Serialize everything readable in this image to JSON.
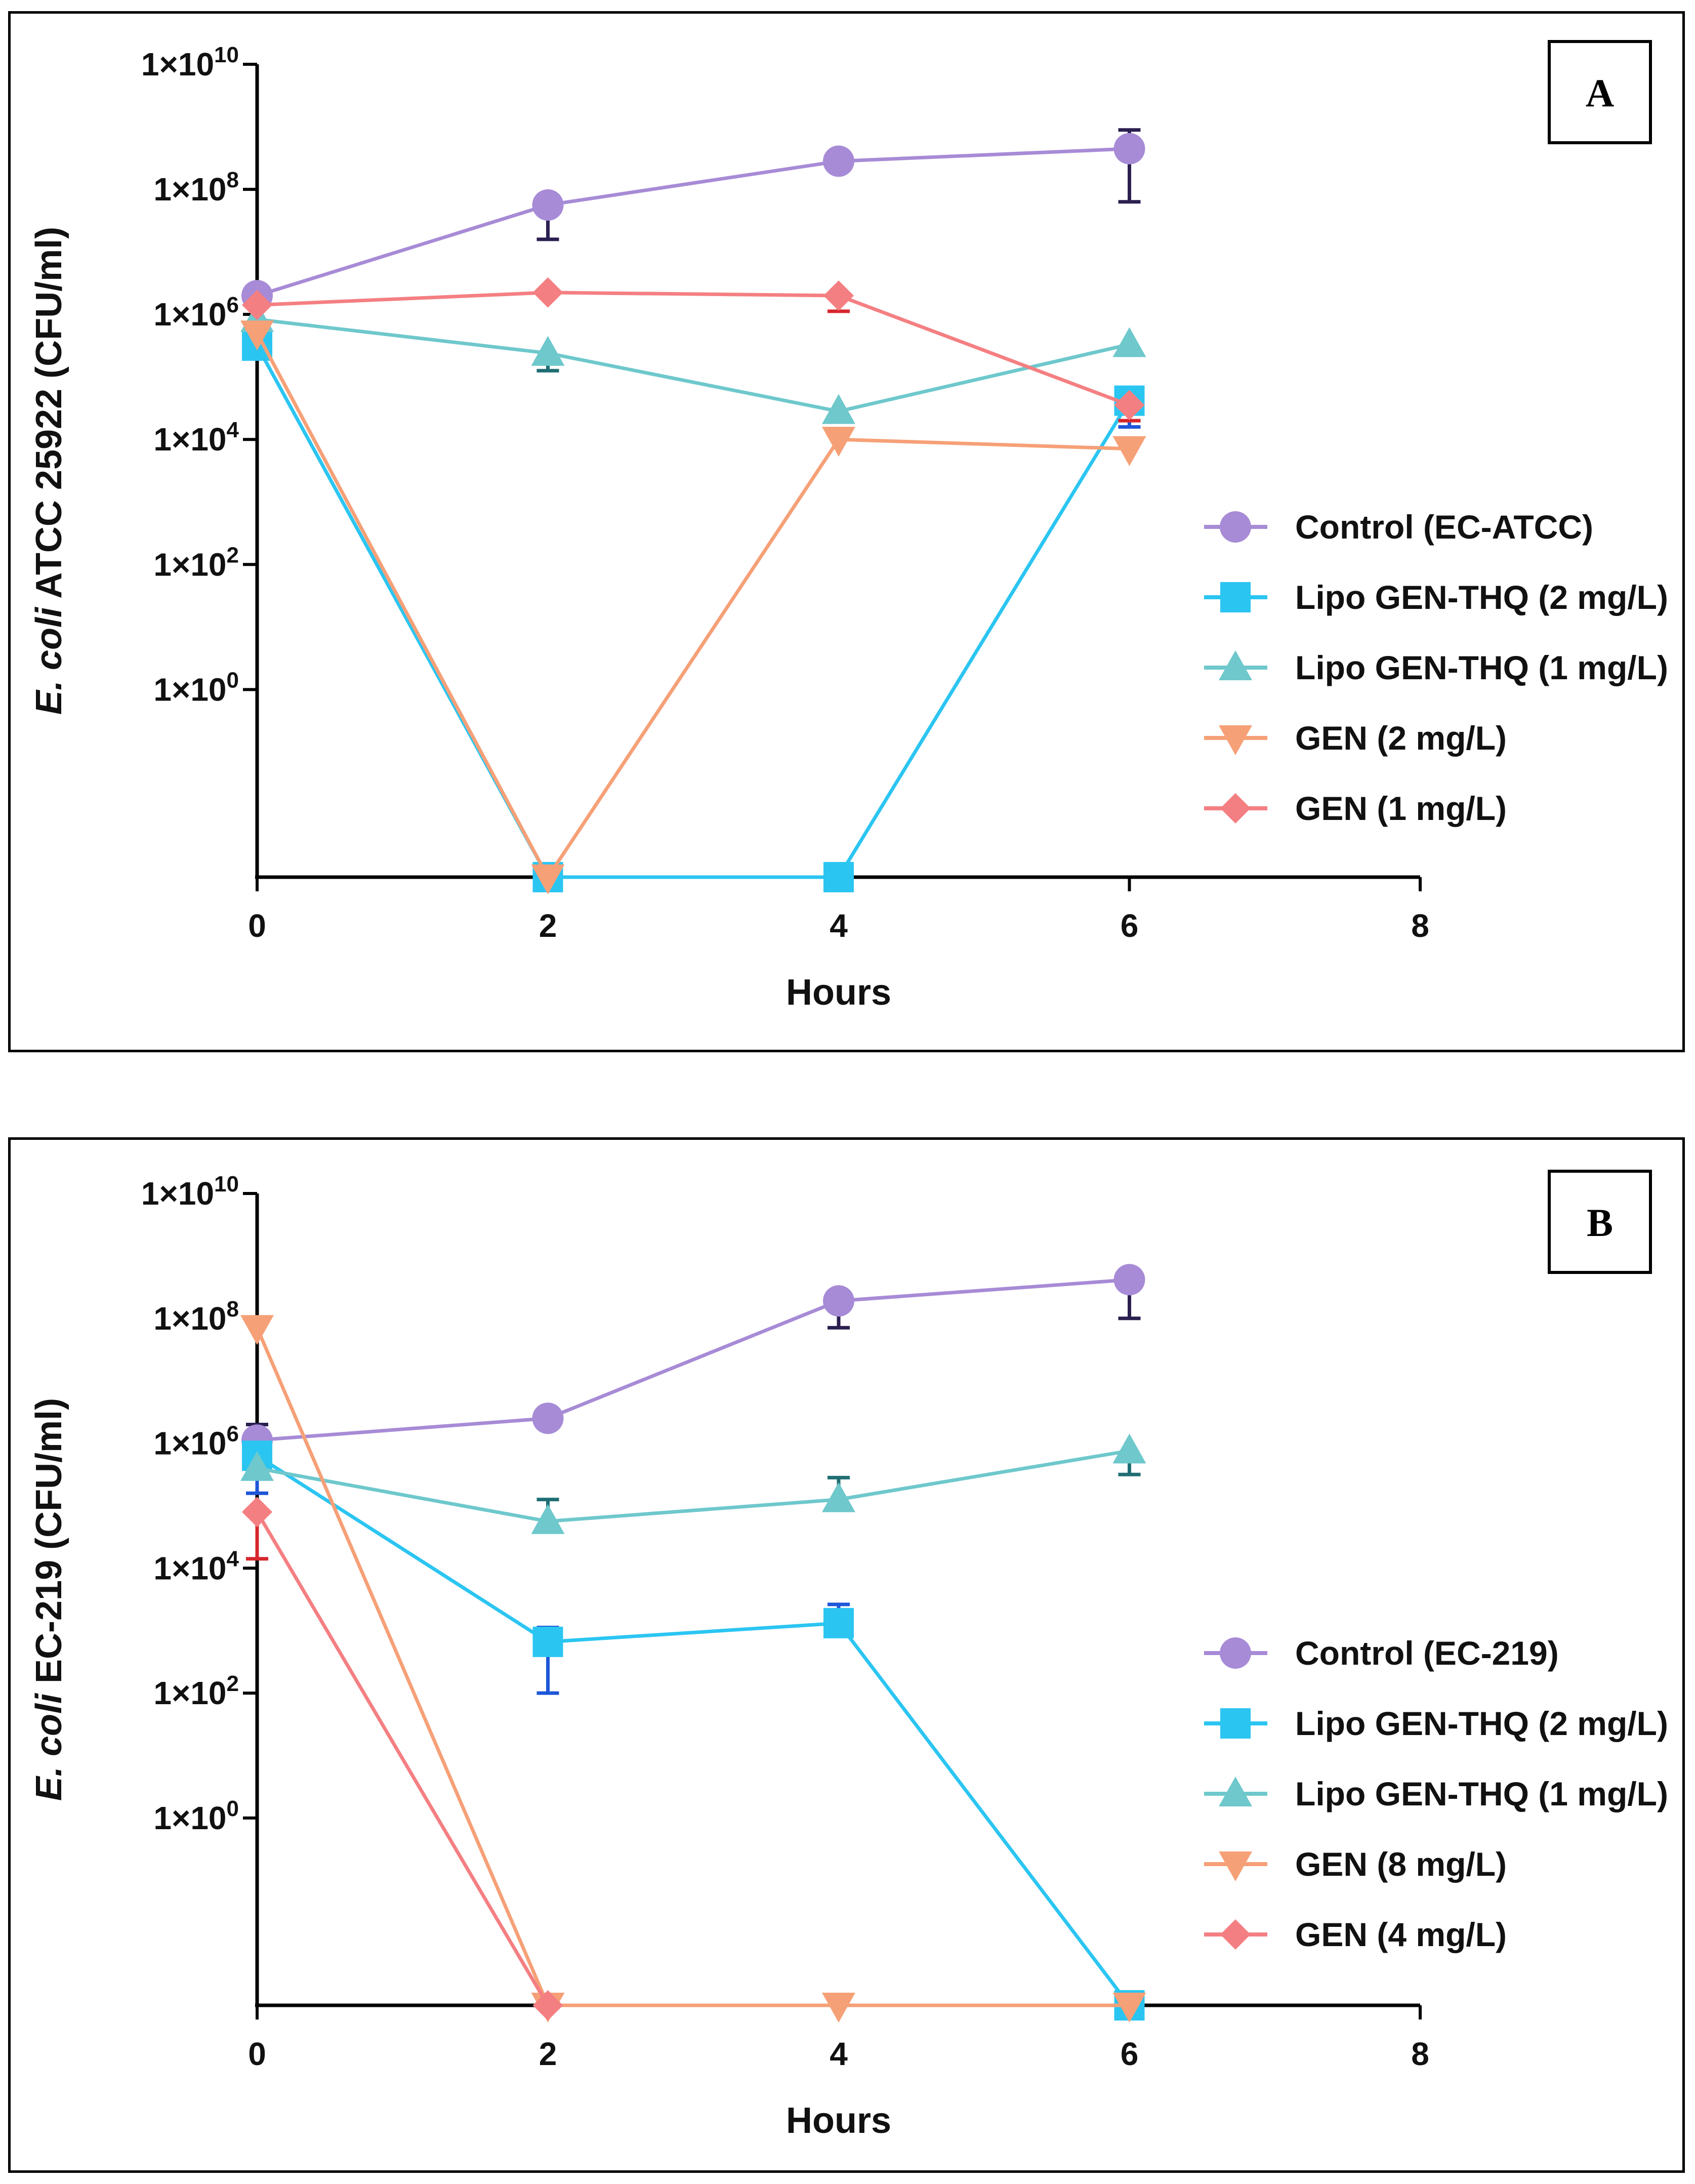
{
  "chart_data": [
    {
      "panel": "A",
      "type": "line",
      "panel_label": "A",
      "ylabel_italic": "E. coli",
      "ylabel_rest": " ATCC 25922 (CFU/ml)",
      "xlabel": "Hours",
      "y_scale": "log10",
      "x_ticks": [
        "0",
        "2",
        "4",
        "6",
        "8"
      ],
      "y_ticks": [
        {
          "mant": "1×10",
          "exp": "10",
          "log": 10
        },
        {
          "mant": "1×10",
          "exp": "8",
          "log": 8
        },
        {
          "mant": "1×10",
          "exp": "6",
          "log": 6
        },
        {
          "mant": "1×10",
          "exp": "4",
          "log": 4
        },
        {
          "mant": "1×10",
          "exp": "2",
          "log": 2
        },
        {
          "mant": "1×10",
          "exp": "0",
          "log": 0
        }
      ],
      "xlim": [
        0,
        8
      ],
      "ylim_log": [
        -3,
        10
      ],
      "series": [
        {
          "name": "Control (EC-ATCC)",
          "color": "#a78bd6",
          "err_color": "#2b1f50",
          "marker": "circle",
          "x": [
            0,
            2,
            4,
            6
          ],
          "y_log": [
            6.3,
            7.75,
            8.45,
            8.65
          ],
          "err_lo": [
            null,
            7.2,
            null,
            7.8
          ],
          "err_hi": [
            null,
            null,
            null,
            8.95
          ]
        },
        {
          "name": "Lipo GEN-THQ (2 mg/L)",
          "color": "#2bc5f2",
          "err_color": "#1e56d8",
          "marker": "square",
          "x": [
            0,
            2,
            4,
            6
          ],
          "y_log": [
            5.5,
            -3,
            -3,
            4.62
          ],
          "err_lo": [
            null,
            null,
            null,
            4.2
          ],
          "err_hi": [
            null,
            null,
            null,
            null
          ]
        },
        {
          "name": "Lipo GEN-THQ (1 mg/L)",
          "color": "#6ec8cc",
          "err_color": "#1f6e73",
          "marker": "triangle-up",
          "x": [
            0,
            2,
            4,
            6
          ],
          "y_log": [
            5.92,
            5.38,
            4.45,
            5.52
          ],
          "err_lo": [
            null,
            5.1,
            null,
            null
          ],
          "err_hi": [
            null,
            null,
            null,
            null
          ]
        },
        {
          "name": "GEN (2 mg/L)",
          "color": "#f6a077",
          "err_color": "#e45d2a",
          "marker": "triangle-down",
          "x": [
            0,
            2,
            4,
            6
          ],
          "y_log": [
            5.7,
            -3,
            4.0,
            3.85
          ],
          "err_lo": [
            null,
            null,
            null,
            null
          ],
          "err_hi": [
            null,
            null,
            null,
            null
          ]
        },
        {
          "name": "GEN (1 mg/L)",
          "color": "#f47f82",
          "err_color": "#d7262c",
          "marker": "diamond",
          "x": [
            0,
            2,
            4,
            6
          ],
          "y_log": [
            6.15,
            6.35,
            6.3,
            4.55
          ],
          "err_lo": [
            null,
            null,
            6.05,
            4.3
          ],
          "err_hi": [
            null,
            null,
            null,
            null
          ]
        }
      ]
    },
    {
      "panel": "B",
      "type": "line",
      "panel_label": "B",
      "ylabel_italic": "E. coli",
      "ylabel_rest": " EC-219 (CFU/ml)",
      "xlabel": "Hours",
      "y_scale": "log10",
      "x_ticks": [
        "0",
        "2",
        "4",
        "6",
        "8"
      ],
      "y_ticks": [
        {
          "mant": "1×10",
          "exp": "10",
          "log": 10
        },
        {
          "mant": "1×10",
          "exp": "8",
          "log": 8
        },
        {
          "mant": "1×10",
          "exp": "6",
          "log": 6
        },
        {
          "mant": "1×10",
          "exp": "4",
          "log": 4
        },
        {
          "mant": "1×10",
          "exp": "2",
          "log": 2
        },
        {
          "mant": "1×10",
          "exp": "0",
          "log": 0
        }
      ],
      "xlim": [
        0,
        8
      ],
      "ylim_log": [
        -3,
        10
      ],
      "series": [
        {
          "name": "Control (EC-219)",
          "color": "#a78bd6",
          "err_color": "#2b1f50",
          "marker": "circle",
          "x": [
            0,
            2,
            4,
            6
          ],
          "y_log": [
            6.05,
            6.4,
            8.28,
            8.62
          ],
          "err_lo": [
            5.5,
            null,
            7.85,
            8.0
          ],
          "err_hi": [
            6.3,
            null,
            null,
            null
          ]
        },
        {
          "name": "Lipo GEN-THQ (2 mg/L)",
          "color": "#2bc5f2",
          "err_color": "#1e56d8",
          "marker": "square",
          "x": [
            0,
            2,
            4,
            6
          ],
          "y_log": [
            5.8,
            2.82,
            3.12,
            -3
          ],
          "err_lo": [
            5.2,
            2.0,
            null,
            null
          ],
          "err_hi": [
            null,
            3.05,
            3.42,
            null
          ]
        },
        {
          "name": "Lipo GEN-THQ (1 mg/L)",
          "color": "#6ec8cc",
          "err_color": "#1f6e73",
          "marker": "triangle-up",
          "x": [
            0,
            2,
            4,
            6
          ],
          "y_log": [
            5.6,
            4.75,
            5.1,
            5.88
          ],
          "err_lo": [
            null,
            null,
            null,
            5.5
          ],
          "err_hi": [
            null,
            5.1,
            5.45,
            null
          ]
        },
        {
          "name": "GEN (8 mg/L)",
          "color": "#f6a077",
          "err_color": "#e45d2a",
          "marker": "triangle-down",
          "x": [
            0,
            2,
            4,
            6
          ],
          "y_log": [
            7.85,
            -3,
            -3,
            -3
          ],
          "err_lo": [
            null,
            null,
            null,
            null
          ],
          "err_hi": [
            null,
            null,
            null,
            null
          ]
        },
        {
          "name": "GEN (4 mg/L)",
          "color": "#f47f82",
          "err_color": "#d7262c",
          "marker": "diamond",
          "x": [
            0,
            2
          ],
          "y_log": [
            4.9,
            -3
          ],
          "err_lo": [
            4.15,
            null
          ],
          "err_hi": [
            null,
            null
          ]
        }
      ]
    }
  ]
}
